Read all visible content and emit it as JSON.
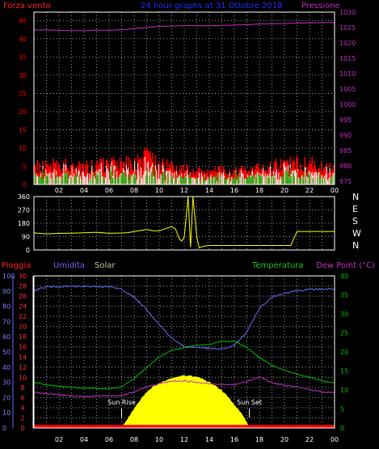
{
  "colors": {
    "background": "#000000",
    "frame": "#ffffff",
    "grid": "#bfbfbf",
    "wind_avg": "#ff0000",
    "wind_gust": "#ffffff",
    "wind_mid": "#00c000",
    "pressure": "#c030c0",
    "direction": "#ffff00",
    "rain": "#ff0000",
    "humidity": "#6a6af0",
    "solar": "#ffff00",
    "temperature": "#00c000",
    "dewpoint": "#c030c0",
    "title": "#0000ff",
    "sun_text": "#ffffff"
  },
  "chart_data": [
    {
      "type": "line",
      "name_panel": "wind_pressure",
      "title": "24 hour graphs at 31 Ottobre 2018",
      "left_label": "Forza vento",
      "right_label": "Pressione",
      "y_left_ticks": [
        "0",
        "5",
        "10",
        "15",
        "20",
        "25",
        "30",
        "35",
        "40",
        "45"
      ],
      "y_right_ticks": [
        "975",
        "980",
        "985",
        "990",
        "995",
        "1000",
        "1005",
        "1010",
        "1015",
        "1020",
        "1025",
        "1030"
      ],
      "ylim_left": [
        0,
        47.3
      ],
      "ylim_right": [
        974,
        1030
      ],
      "x_ticks": [
        "02",
        "04",
        "06",
        "08",
        "10",
        "12",
        "14",
        "16",
        "18",
        "20",
        "22",
        "00"
      ],
      "xlim_hours": [
        0,
        24
      ],
      "grid": true,
      "series": [
        {
          "key": "pressure",
          "x": [
            0,
            1,
            2,
            3,
            4,
            5,
            6,
            7,
            8,
            9,
            10,
            11,
            12,
            13,
            14,
            15,
            16,
            17,
            18,
            19,
            20,
            21,
            22,
            23,
            24
          ],
          "values": [
            1024.2,
            1024.2,
            1024.1,
            1024.0,
            1024.0,
            1024.1,
            1024.1,
            1024.3,
            1024.6,
            1025.0,
            1025.4,
            1025.5,
            1025.6,
            1025.6,
            1025.6,
            1025.7,
            1025.8,
            1025.9,
            1026.1,
            1026.2,
            1026.3,
            1026.4,
            1026.5,
            1026.6,
            1026.6
          ]
        },
        {
          "key": "wind_avg",
          "x": [
            0,
            2,
            4,
            6,
            8,
            9,
            10,
            12,
            13,
            14,
            16,
            18,
            20,
            22,
            24
          ],
          "values": [
            5,
            6,
            5,
            6,
            6,
            8,
            6,
            5,
            4,
            4,
            4,
            5,
            6,
            6,
            5
          ]
        }
      ]
    },
    {
      "type": "line",
      "name_panel": "wind_direction",
      "y_left_ticks": [
        "0",
        "90",
        "180",
        "270",
        "360"
      ],
      "y_right_ticks": [
        "N",
        "W",
        "S",
        "E",
        "N"
      ],
      "ylim": [
        0,
        360
      ],
      "x": [
        0,
        1,
        2,
        3,
        4,
        5,
        6,
        7,
        7.5,
        8,
        8.5,
        9,
        9.5,
        10,
        11,
        11.3,
        11.6,
        11.8,
        12,
        12.3,
        12.5,
        12.7,
        13,
        13.2,
        13.5,
        14,
        15,
        16,
        17,
        18,
        19,
        20,
        20.5,
        21,
        22,
        23,
        24
      ],
      "values": [
        115,
        110,
        112,
        112,
        115,
        118,
        115,
        115,
        118,
        124,
        132,
        138,
        130,
        128,
        158,
        142,
        75,
        60,
        85,
        360,
        20,
        360,
        90,
        15,
        25,
        30,
        30,
        30,
        30,
        30,
        30,
        30,
        30,
        125,
        125,
        125,
        125
      ],
      "grid": true
    },
    {
      "type": "line",
      "name_panel": "temp_humidity",
      "left_label_rain": "Pioggia",
      "left_label_humidity": "Umidita",
      "left_label_solar": "Solar",
      "right_label_temp": "Temperatura",
      "right_label_dew": "Dew Point (°C)",
      "y_rain_ticks": [
        "0",
        "10",
        "20",
        "30",
        "40",
        "50",
        "60",
        "70",
        "80",
        "90",
        "100"
      ],
      "y_hum_ticks": [
        "0",
        "2",
        "4",
        "6",
        "8",
        "10",
        "12",
        "14",
        "16",
        "18",
        "20",
        "22",
        "24",
        "26",
        "28",
        "30"
      ],
      "y_right_ticks": [
        "0",
        "5",
        "10",
        "15",
        "20",
        "25",
        "30",
        "35",
        "40"
      ],
      "ylim_hum": [
        0,
        30
      ],
      "ylim_temp": [
        0,
        40
      ],
      "annotations": [
        "Sun Rise",
        "Sun Set"
      ],
      "sunrise_hour": 7.0,
      "sunset_hour": 17.2,
      "grid": true,
      "series": [
        {
          "key": "humidity",
          "x": [
            0,
            1,
            2,
            3,
            4,
            5,
            6,
            7,
            8,
            9,
            10,
            11,
            12,
            13,
            14,
            15,
            16,
            17,
            18,
            19,
            20,
            21,
            22,
            23,
            24
          ],
          "values": [
            27.2,
            27.8,
            27.9,
            27.9,
            27.9,
            27.9,
            27.8,
            27.4,
            25.8,
            23.4,
            20.4,
            17.7,
            16.0,
            15.9,
            15.7,
            15.5,
            16.3,
            18.9,
            23.6,
            25.8,
            26.6,
            27.1,
            27.3,
            27.4,
            27.4
          ]
        },
        {
          "key": "temperature",
          "x": [
            0,
            1,
            2,
            3,
            4,
            5,
            6,
            7,
            8,
            9,
            10,
            11,
            12,
            13,
            14,
            15,
            16,
            17,
            18,
            19,
            20,
            21,
            22,
            23,
            24
          ],
          "values": [
            12.0,
            11.3,
            11.0,
            10.7,
            10.5,
            10.4,
            10.3,
            10.8,
            13.0,
            15.9,
            18.7,
            20.4,
            21.2,
            21.7,
            22.0,
            22.8,
            22.8,
            21.2,
            18.5,
            16.4,
            15.2,
            14.2,
            13.3,
            12.4,
            11.8
          ]
        },
        {
          "key": "dewpoint",
          "x": [
            0,
            1,
            2,
            3,
            4,
            5,
            6,
            7,
            8,
            9,
            10,
            11,
            12,
            13,
            14,
            15,
            16,
            17,
            18,
            19,
            20,
            21,
            22,
            23,
            24
          ],
          "values": [
            9.5,
            9.0,
            8.8,
            8.4,
            8.2,
            8.4,
            8.5,
            8.5,
            9.4,
            10.8,
            11.6,
            12.3,
            12.4,
            12.0,
            11.7,
            11.4,
            11.4,
            12.2,
            13.5,
            11.9,
            11.2,
            10.8,
            10.1,
            9.5,
            9.3
          ]
        },
        {
          "key": "solar",
          "x": [
            0,
            6.6,
            7.0,
            7.5,
            8,
            8.5,
            9,
            9.5,
            10,
            10.5,
            11,
            11.5,
            12,
            12.5,
            13,
            13.5,
            14,
            14.5,
            15,
            15.5,
            16,
            16.5,
            17,
            17.2,
            24
          ],
          "values": [
            0,
            0,
            0.3,
            1.8,
            3.8,
            5.6,
            7.0,
            8.1,
            8.8,
            9.3,
            9.8,
            10.1,
            10.3,
            10.2,
            10.0,
            9.6,
            9.0,
            8.3,
            7.3,
            6.1,
            4.6,
            3.0,
            1.0,
            0,
            0
          ]
        },
        {
          "key": "rain",
          "x": [
            0,
            24
          ],
          "values": [
            0.6,
            0.6
          ]
        }
      ]
    }
  ]
}
